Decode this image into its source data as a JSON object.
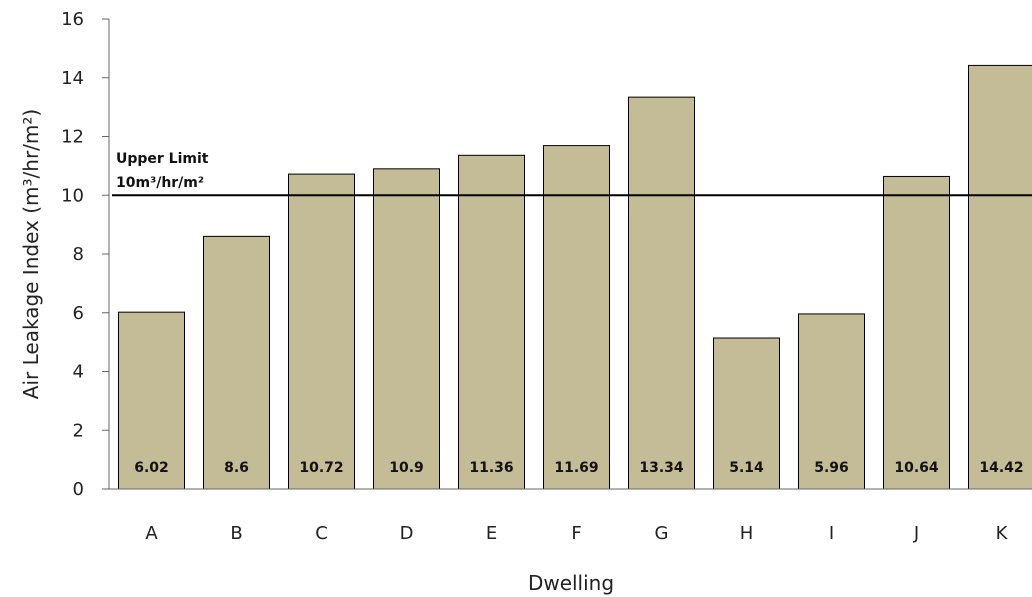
{
  "chart_data": {
    "type": "bar",
    "categories": [
      "A",
      "B",
      "C",
      "D",
      "E",
      "F",
      "G",
      "H",
      "I",
      "J",
      "K"
    ],
    "values": [
      6.02,
      8.6,
      10.72,
      10.9,
      11.36,
      11.69,
      13.34,
      5.14,
      5.96,
      10.64,
      14.42
    ],
    "data_labels": [
      "6.02",
      "8.6",
      "10.72",
      "10.9",
      "11.36",
      "11.69",
      "13.34",
      "5.14",
      "5.96",
      "10.64",
      "14.42"
    ],
    "xlabel": "Dwelling",
    "ylabel": "Air Leakage Index (m³/hr/m²)",
    "ylim": [
      0,
      16
    ],
    "yticks": [
      0,
      2,
      4,
      6,
      8,
      10,
      12,
      14,
      16
    ],
    "grid": false,
    "bar_color": "#c4bc96",
    "reference_line": {
      "value": 10,
      "label_line1": "Upper Limit",
      "label_line2": "10m³/hr/m²"
    }
  }
}
